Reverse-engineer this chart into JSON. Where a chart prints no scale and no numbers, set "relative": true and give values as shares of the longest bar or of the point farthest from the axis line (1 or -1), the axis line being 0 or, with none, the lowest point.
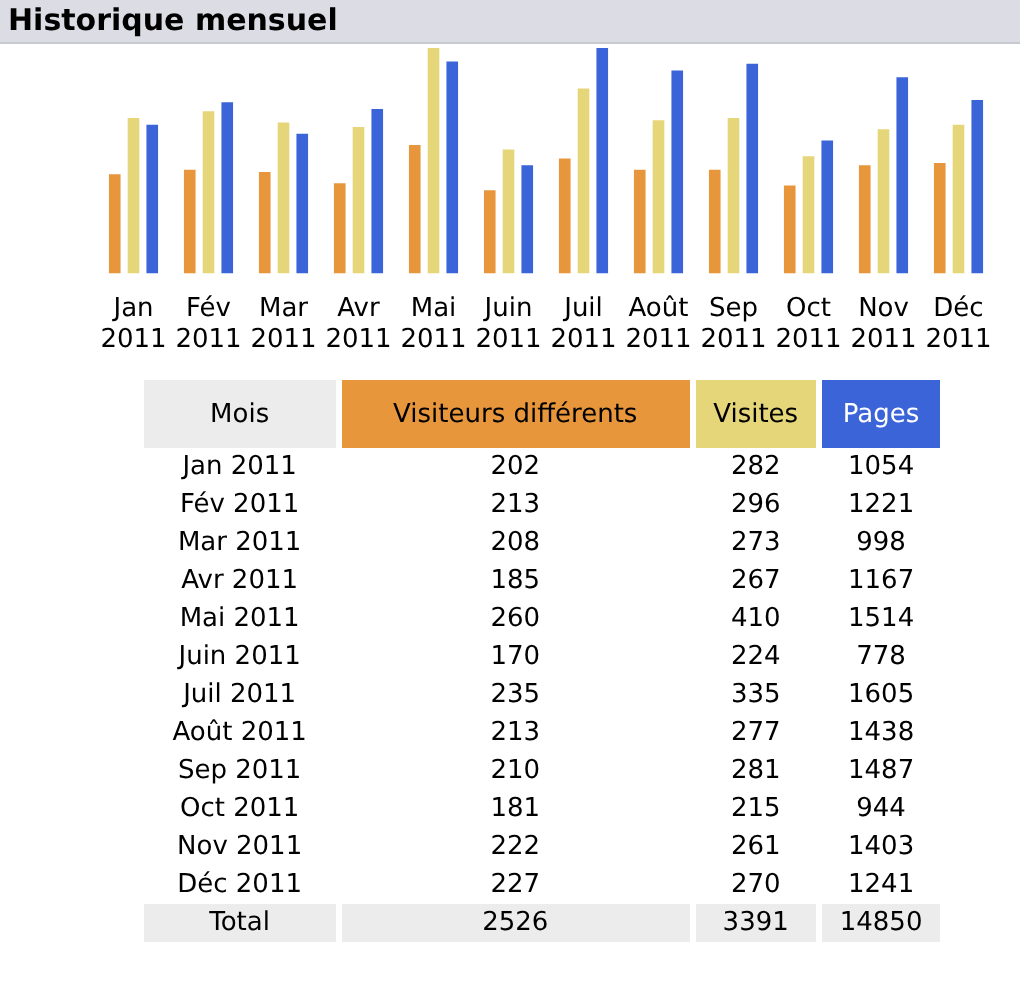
{
  "chart_data": [
    {
      "type": "bar",
      "title": "Historique mensuel",
      "relative": true,
      "categories": [
        "Jan 2011",
        "Fév 2011",
        "Mar 2011",
        "Avr 2011",
        "Mai 2011",
        "Juin 2011",
        "Juil 2011",
        "Août 2011",
        "Sep 2011",
        "Oct 2011",
        "Nov 2011",
        "Déc 2011"
      ],
      "series": [
        {
          "color": "#e8963c",
          "values": [
            0.44,
            0.46,
            0.45,
            0.4,
            0.57,
            0.37,
            0.51,
            0.46,
            0.46,
            0.39,
            0.48,
            0.49
          ]
        },
        {
          "color": "#e6d67a",
          "values": [
            0.69,
            0.72,
            0.67,
            0.65,
            1,
            0.55,
            0.82,
            0.68,
            0.69,
            0.52,
            0.64,
            0.66
          ]
        },
        {
          "color": "#3a64d8",
          "values": [
            0.66,
            0.76,
            0.62,
            0.73,
            0.94,
            0.48,
            1,
            0.9,
            0.93,
            0.59,
            0.87,
            0.77
          ]
        }
      ],
      "grid": false,
      "legend": false
    },
    {
      "type": "other",
      "annotations": [
        "Mois",
        "Visiteurs différents",
        "Visites",
        "Pages",
        "Jan 2011",
        "202",
        "282",
        "1054",
        "Fév 2011",
        "213",
        "296",
        "1221",
        "Mar 2011",
        "208",
        "273",
        "998",
        "Avr 2011",
        "185",
        "267",
        "1167",
        "Mai 2011",
        "260",
        "410",
        "1514",
        "Juin 2011",
        "170",
        "224",
        "778",
        "Juil 2011",
        "235",
        "335",
        "1605",
        "Août 2011",
        "213",
        "277",
        "1438",
        "Sep 2011",
        "210",
        "281",
        "1487",
        "Oct 2011",
        "181",
        "215",
        "944",
        "Nov 2011",
        "222",
        "261",
        "1403",
        "Déc 2011",
        "227",
        "270",
        "1241",
        "Total",
        "2526",
        "3391",
        "14850"
      ]
    }
  ]
}
